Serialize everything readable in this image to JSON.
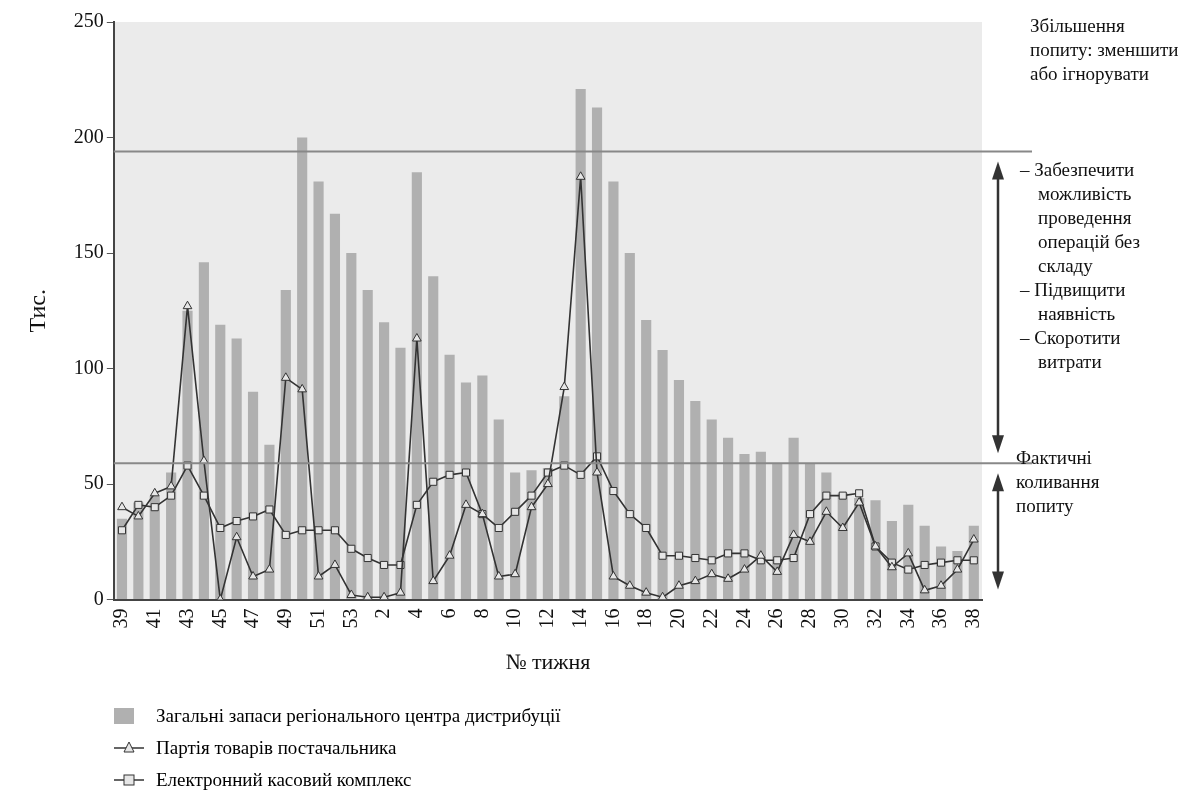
{
  "chart_data": {
    "type": "bar",
    "ylabel": "Тис.",
    "xlabel": "№ тижня",
    "categories": [
      "39",
      null,
      "41",
      null,
      "43",
      null,
      "45",
      null,
      "47",
      null,
      "49",
      null,
      "51",
      null,
      "53",
      null,
      "2",
      null,
      "4",
      null,
      "6",
      null,
      "8",
      null,
      "10",
      null,
      "12",
      null,
      "14",
      null,
      "16",
      null,
      "18",
      null,
      "20",
      null,
      "22",
      null,
      "24",
      null,
      "26",
      null,
      "28",
      null,
      "30",
      null,
      "32",
      null,
      "34",
      null,
      "36",
      null,
      "38"
    ],
    "series": [
      {
        "name": "Загальні запаси регіонального центра дистрибуції",
        "color": "#b0b0b0",
        "values": [
          35,
          42,
          45,
          55,
          125,
          146,
          119,
          113,
          90,
          67,
          134,
          200,
          181,
          167,
          150,
          134,
          120,
          109,
          185,
          140,
          106,
          94,
          97,
          78,
          55,
          56,
          57,
          88,
          221,
          213,
          181,
          150,
          121,
          108,
          95,
          86,
          78,
          70,
          63,
          64,
          59,
          70,
          59,
          55,
          46,
          44,
          43,
          34,
          41,
          32,
          23,
          21,
          32
        ]
      },
      {
        "name": "Партія товарів постачальника",
        "type": "line",
        "marker": "triangle",
        "color": "#333333",
        "values": [
          40,
          36,
          46,
          49,
          127,
          60,
          0,
          27,
          10,
          13,
          96,
          91,
          10,
          15,
          2,
          1,
          1,
          3,
          113,
          8,
          19,
          41,
          37,
          10,
          11,
          40,
          50,
          92,
          183,
          55,
          10,
          6,
          3,
          1,
          6,
          8,
          11,
          9,
          13,
          19,
          12,
          28,
          25,
          38,
          31,
          42,
          23,
          14,
          20,
          4,
          6,
          13,
          26
        ]
      },
      {
        "name": "Електронний касовий комплекс",
        "type": "line",
        "marker": "square",
        "color": "#333333",
        "values": [
          30,
          41,
          40,
          45,
          58,
          45,
          31,
          34,
          36,
          39,
          28,
          30,
          30,
          30,
          22,
          18,
          15,
          15,
          41,
          51,
          54,
          55,
          37,
          31,
          38,
          45,
          55,
          58,
          54,
          62,
          47,
          37,
          31,
          19,
          19,
          18,
          17,
          20,
          20,
          17,
          17,
          18,
          37,
          45,
          45,
          46,
          23,
          16,
          13,
          15,
          16,
          17,
          17
        ]
      }
    ],
    "ylim": [
      0,
      250
    ],
    "yticks": [
      0,
      50,
      100,
      150,
      200,
      250
    ],
    "grid": false,
    "legend": "bottom",
    "ref_lines": [
      {
        "axis": "y",
        "value": 194,
        "color": "#888888"
      },
      {
        "axis": "y",
        "value": 59,
        "color": "#888888"
      }
    ],
    "annotations": [
      "Збільшення попиту: зменшити або ігнорувати",
      "– Забезпечити можливість проведення операцій без складу",
      "– Підвищити наявність",
      "– Скоротити витрати",
      "Фактичні коливання попиту"
    ]
  }
}
